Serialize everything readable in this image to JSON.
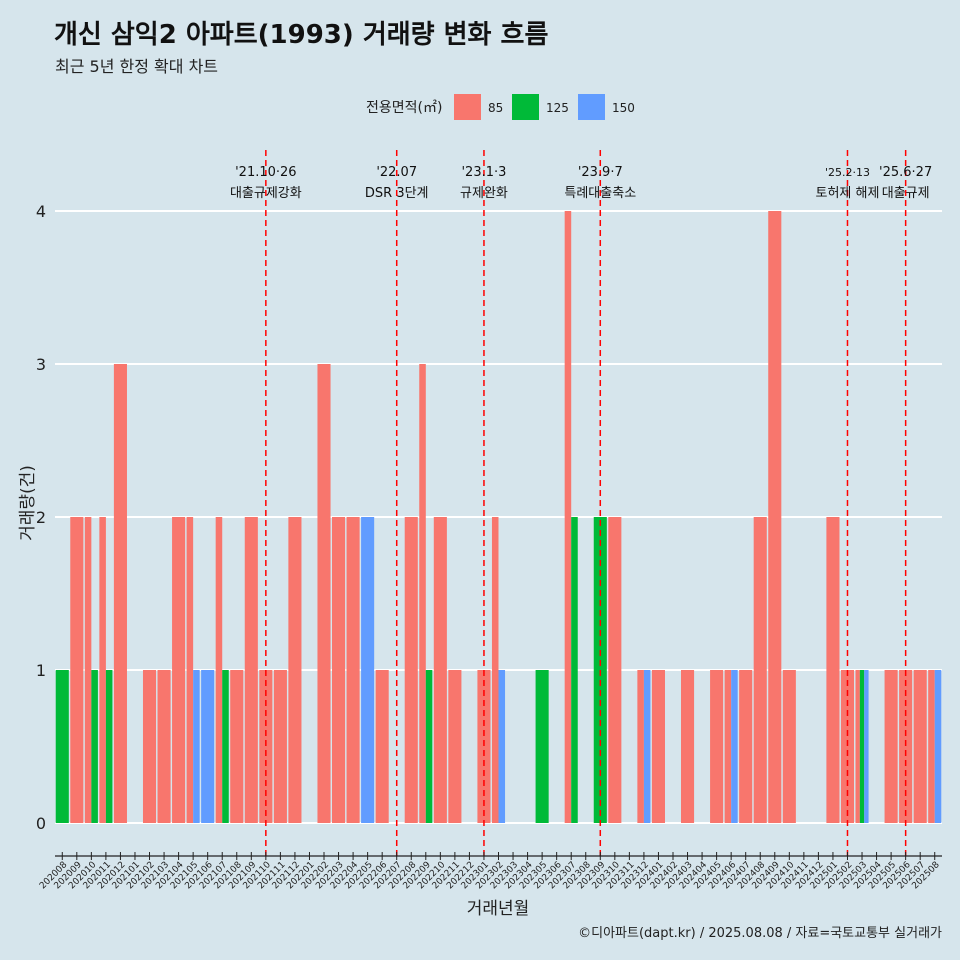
{
  "title": "개신 삼익2 아파트(1993) 거래량 변화 흐름",
  "subtitle": "최근 5년 한정 확대 차트",
  "caption": "©디아파트(dapt.kr) / 2025.08.08 / 자료=국토교통부 실거래가",
  "chart_data": {
    "type": "bar",
    "xlabel": "거래년월",
    "ylabel": "거래량(건)",
    "ylim": [
      -0.2,
      4.4
    ],
    "yticks": [
      0,
      1,
      2,
      3,
      4
    ],
    "legend": {
      "title": "전용면적(㎡)",
      "position": "top",
      "items": [
        {
          "name": "85",
          "color": "#f8766d"
        },
        {
          "name": "125",
          "color": "#00ba38"
        },
        {
          "name": "150",
          "color": "#619cff"
        }
      ]
    },
    "categories": [
      "202008",
      "202009",
      "202010",
      "202011",
      "202012",
      "202101",
      "202102",
      "202103",
      "202104",
      "202105",
      "202106",
      "202107",
      "202108",
      "202109",
      "202110",
      "202111",
      "202112",
      "202201",
      "202202",
      "202203",
      "202204",
      "202205",
      "202206",
      "202207",
      "202208",
      "202209",
      "202210",
      "202211",
      "202212",
      "202301",
      "202302",
      "202303",
      "202304",
      "202305",
      "202306",
      "202307",
      "202308",
      "202309",
      "202310",
      "202311",
      "202312",
      "202401",
      "202402",
      "202403",
      "202404",
      "202405",
      "202406",
      "202407",
      "202408",
      "202409",
      "202410",
      "202411",
      "202412",
      "202501",
      "202502",
      "202503",
      "202504",
      "202505",
      "202506",
      "202507",
      "202508"
    ],
    "series": [
      {
        "name": "85",
        "color": "#f8766d",
        "values": [
          0,
          2,
          2,
          2,
          3,
          0,
          1,
          1,
          2,
          2,
          0,
          2,
          1,
          2,
          1,
          1,
          2,
          0,
          3,
          2,
          2,
          0,
          1,
          0,
          2,
          3,
          2,
          1,
          0,
          1,
          2,
          0,
          0,
          0,
          0,
          4,
          0,
          0,
          2,
          0,
          1,
          1,
          0,
          1,
          0,
          1,
          1,
          1,
          2,
          4,
          1,
          0,
          0,
          2,
          1,
          1,
          0,
          1,
          1,
          1,
          1
        ]
      },
      {
        "name": "125",
        "color": "#00ba38",
        "values": [
          1,
          0,
          1,
          1,
          0,
          0,
          0,
          0,
          0,
          0,
          0,
          1,
          0,
          0,
          0,
          0,
          0,
          0,
          0,
          0,
          0,
          0,
          0,
          0,
          0,
          1,
          0,
          0,
          0,
          0,
          0,
          0,
          0,
          1,
          0,
          2,
          0,
          2,
          0,
          0,
          0,
          0,
          0,
          0,
          0,
          0,
          0,
          0,
          0,
          0,
          0,
          0,
          0,
          0,
          0,
          1,
          0,
          0,
          0,
          0,
          0
        ]
      },
      {
        "name": "150",
        "color": "#619cff",
        "values": [
          0,
          0,
          0,
          0,
          0,
          0,
          0,
          0,
          0,
          1,
          1,
          0,
          0,
          0,
          0,
          0,
          0,
          0,
          0,
          0,
          0,
          2,
          0,
          0,
          0,
          0,
          0,
          0,
          0,
          0,
          1,
          0,
          0,
          0,
          0,
          0,
          0,
          0,
          0,
          0,
          1,
          0,
          0,
          0,
          0,
          0,
          1,
          0,
          0,
          0,
          0,
          0,
          0,
          0,
          0,
          1,
          0,
          0,
          0,
          0,
          1
        ]
      }
    ],
    "events": [
      {
        "at": "202110",
        "date": "'21.10·26",
        "label": "대출규제강화"
      },
      {
        "at": "202207",
        "date": "'22.07",
        "label": "DSR 3단계"
      },
      {
        "at": "202301",
        "date": "'23.1·3",
        "label": "규제완화"
      },
      {
        "at": "202309",
        "date": "'23.9·7",
        "label": "특례대출축소"
      },
      {
        "at": "202502",
        "date": "'25.2·13",
        "label": "토허제 해제"
      },
      {
        "at": "202506",
        "date": "'25.6·27",
        "label": "대출규제"
      }
    ]
  }
}
